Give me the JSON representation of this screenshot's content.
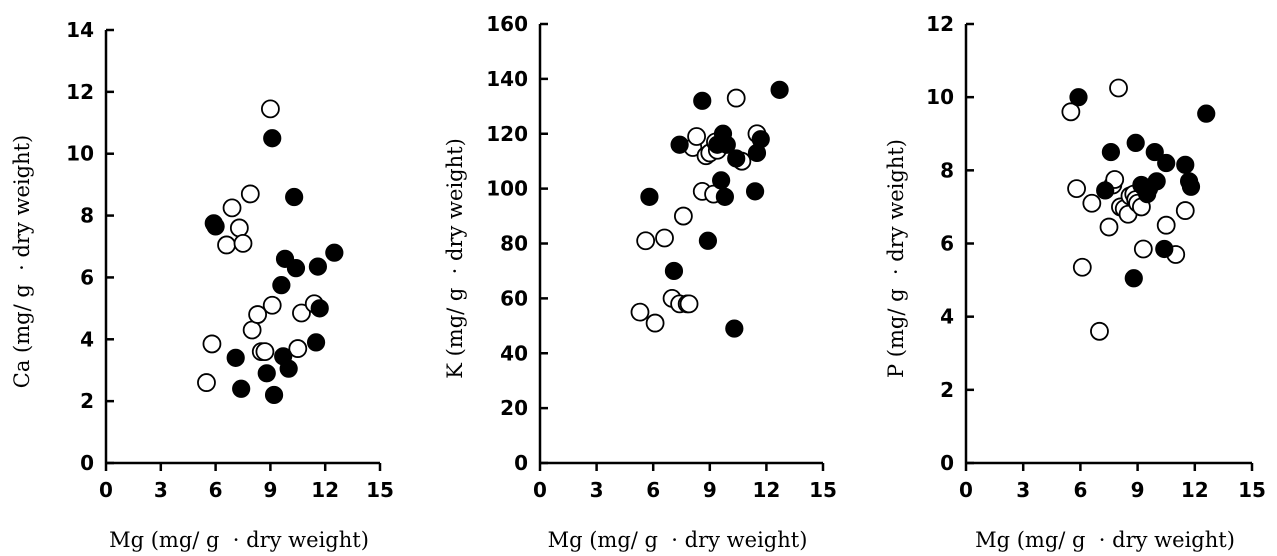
{
  "chart_data": [
    {
      "type": "scatter",
      "xlabel": "Mg (mg/ g  · dry weight)",
      "ylabel": "Ca (mg/ g  · dry weight)",
      "xlim": [
        0,
        15
      ],
      "ylim": [
        0,
        14
      ],
      "xticks": [
        0,
        3,
        6,
        9,
        12,
        15
      ],
      "yticks": [
        0,
        2,
        4,
        6,
        8,
        10,
        12,
        14
      ],
      "grid": false,
      "series": [
        {
          "marker": "open",
          "x": [
            5.5,
            5.8,
            6.6,
            6.9,
            7.3,
            7.5,
            7.9,
            8.0,
            8.3,
            8.5,
            8.7,
            9.0,
            9.1,
            10.5,
            10.7,
            11.4
          ],
          "y": [
            2.6,
            3.85,
            7.05,
            8.25,
            7.6,
            7.1,
            8.7,
            4.3,
            4.8,
            3.6,
            3.6,
            11.45,
            5.1,
            3.7,
            4.85,
            5.15
          ]
        },
        {
          "marker": "filled",
          "x": [
            5.9,
            6.0,
            7.1,
            7.4,
            8.8,
            9.1,
            9.2,
            9.6,
            9.7,
            9.8,
            10.0,
            10.3,
            10.4,
            11.5,
            11.6,
            11.7,
            12.5
          ],
          "y": [
            7.75,
            7.65,
            3.4,
            2.4,
            2.9,
            10.5,
            2.2,
            5.75,
            3.45,
            6.6,
            3.05,
            8.6,
            6.3,
            3.9,
            6.35,
            5.0,
            6.8
          ]
        }
      ]
    },
    {
      "type": "scatter",
      "xlabel": "Mg (mg/ g  · dry weight)",
      "ylabel": "K (mg/ g  · dry weight)",
      "xlim": [
        0,
        15
      ],
      "ylim": [
        0,
        160
      ],
      "xticks": [
        0,
        3,
        6,
        9,
        12,
        15
      ],
      "yticks": [
        0,
        20,
        40,
        60,
        80,
        100,
        120,
        140,
        160
      ],
      "grid": false,
      "series": [
        {
          "marker": "open",
          "x": [
            5.3,
            5.6,
            6.1,
            6.6,
            7.0,
            7.4,
            7.6,
            7.8,
            7.9,
            8.1,
            8.3,
            8.6,
            8.8,
            9.0,
            9.2,
            9.3,
            9.4,
            10.4,
            10.7,
            11.5
          ],
          "y": [
            55,
            81,
            51,
            82,
            60,
            58,
            90,
            58,
            58,
            115,
            119,
            99,
            112,
            113,
            98,
            117,
            114,
            133,
            110,
            120
          ]
        },
        {
          "marker": "filled",
          "x": [
            5.8,
            7.1,
            7.4,
            8.6,
            8.9,
            9.4,
            9.6,
            9.7,
            9.8,
            9.9,
            10.3,
            10.4,
            11.4,
            11.5,
            11.7,
            12.7
          ],
          "y": [
            97,
            70,
            116,
            132,
            81,
            116,
            103,
            120,
            97,
            116,
            49,
            111,
            99,
            113,
            118,
            136
          ]
        }
      ]
    },
    {
      "type": "scatter",
      "xlabel": "Mg (mg/ g  · dry weight)",
      "ylabel": "P (mg/ g  · dry weight)",
      "xlim": [
        0,
        15
      ],
      "ylim": [
        0,
        12
      ],
      "xticks": [
        0,
        3,
        6,
        9,
        12,
        15
      ],
      "yticks": [
        0,
        2,
        4,
        6,
        8,
        10,
        12
      ],
      "grid": false,
      "series": [
        {
          "marker": "open",
          "x": [
            5.5,
            5.8,
            6.1,
            6.6,
            7.0,
            7.5,
            7.7,
            7.8,
            8.0,
            8.1,
            8.3,
            8.5,
            8.6,
            8.8,
            8.9,
            9.0,
            9.2,
            9.3,
            10.5,
            11.0,
            11.5
          ],
          "y": [
            9.6,
            7.5,
            5.35,
            7.1,
            3.6,
            6.45,
            7.6,
            7.75,
            10.25,
            7.0,
            6.95,
            6.8,
            7.3,
            7.35,
            7.2,
            7.1,
            7.0,
            5.85,
            6.5,
            5.7,
            6.9
          ]
        },
        {
          "marker": "filled",
          "x": [
            5.9,
            7.3,
            7.6,
            8.8,
            8.9,
            9.2,
            9.3,
            9.5,
            9.6,
            9.9,
            10.0,
            10.4,
            10.5,
            11.5,
            11.7,
            11.8,
            12.6
          ],
          "y": [
            10.0,
            7.45,
            8.5,
            5.05,
            8.75,
            7.6,
            7.55,
            7.35,
            7.5,
            8.5,
            7.7,
            5.85,
            8.2,
            8.15,
            7.7,
            7.55,
            9.55
          ]
        }
      ]
    }
  ]
}
